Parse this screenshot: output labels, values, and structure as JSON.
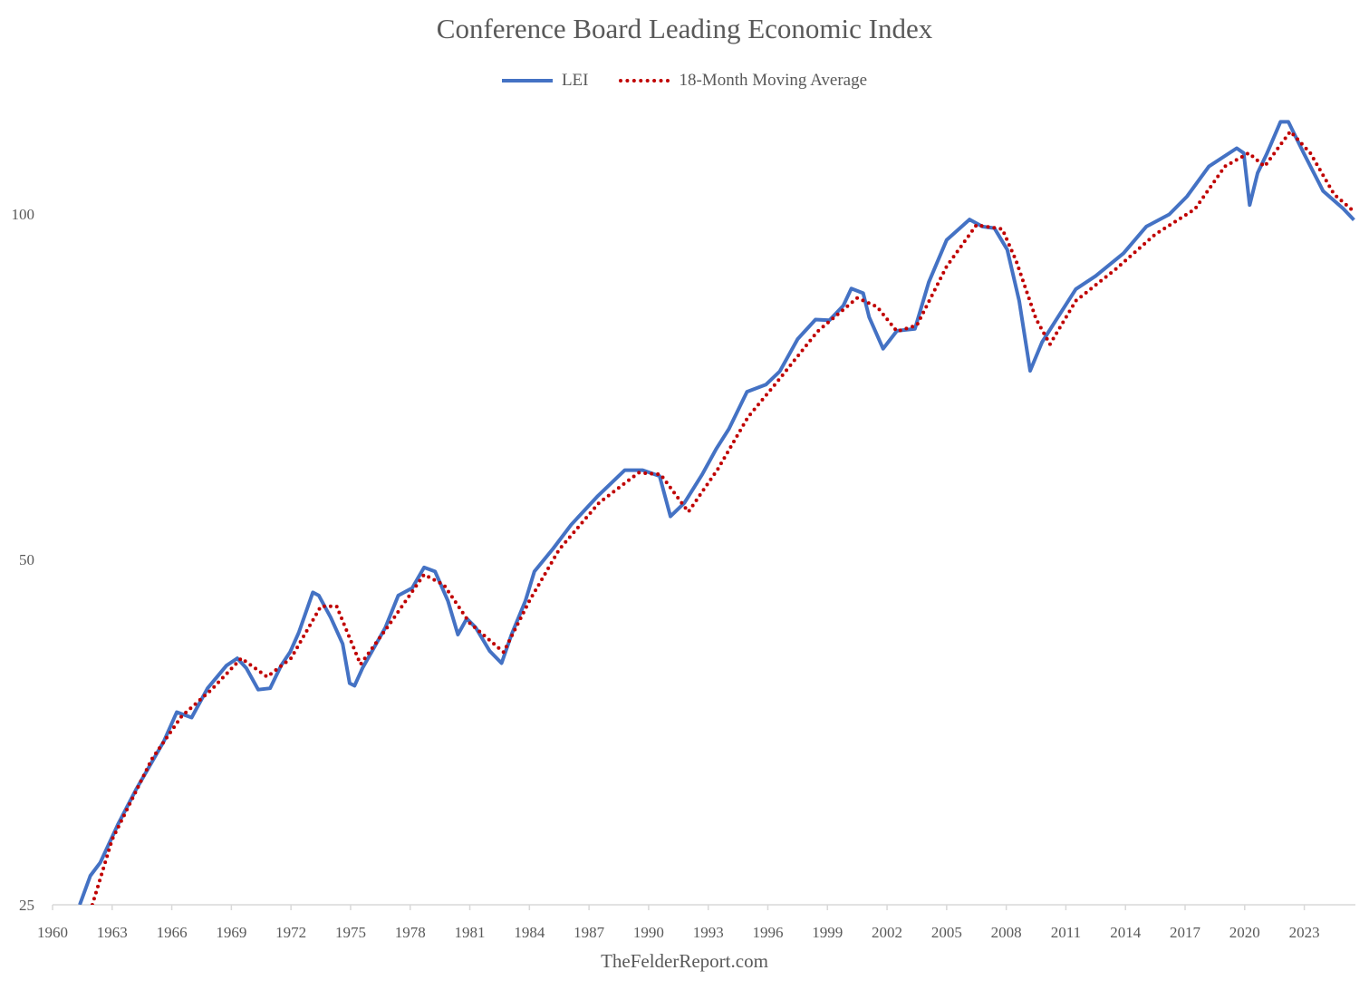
{
  "chart_data": {
    "type": "line",
    "title": "Conference Board Leading Economic Index",
    "xlabel": "",
    "ylabel": "",
    "yscale": "log2",
    "ylim": [
      25,
      125
    ],
    "xlim": [
      1960,
      2025.6
    ],
    "yticks": [
      25,
      50,
      100
    ],
    "xticks": [
      1960,
      1963,
      1966,
      1969,
      1972,
      1975,
      1978,
      1981,
      1984,
      1987,
      1990,
      1993,
      1996,
      1999,
      2002,
      2005,
      2008,
      2011,
      2014,
      2017,
      2020,
      2023
    ],
    "grid": false,
    "legend_position": "top-center",
    "source": "TheFelderReport.com",
    "series": [
      {
        "name": "LEI",
        "color": "#4472c4",
        "style": "solid",
        "points": [
          [
            1961.37,
            25
          ],
          [
            1961.9,
            26.5
          ],
          [
            1962.4,
            27.2
          ],
          [
            1963.3,
            29.4
          ],
          [
            1964.2,
            31.5
          ],
          [
            1965.6,
            34.7
          ],
          [
            1966.25,
            36.8
          ],
          [
            1967.0,
            36.4
          ],
          [
            1967.8,
            38.6
          ],
          [
            1968.75,
            40.4
          ],
          [
            1969.3,
            41.0
          ],
          [
            1969.75,
            40.2
          ],
          [
            1970.35,
            38.5
          ],
          [
            1970.95,
            38.6
          ],
          [
            1971.5,
            40.4
          ],
          [
            1971.95,
            41.5
          ],
          [
            1972.4,
            43.2
          ],
          [
            1973.1,
            46.8
          ],
          [
            1973.4,
            46.5
          ],
          [
            1974.0,
            44.5
          ],
          [
            1974.6,
            42.2
          ],
          [
            1974.95,
            39.0
          ],
          [
            1975.2,
            38.8
          ],
          [
            1975.6,
            40.2
          ],
          [
            1976.15,
            41.8
          ],
          [
            1976.75,
            43.6
          ],
          [
            1977.4,
            46.5
          ],
          [
            1978.1,
            47.2
          ],
          [
            1978.7,
            49.2
          ],
          [
            1979.25,
            48.8
          ],
          [
            1979.9,
            46.0
          ],
          [
            1980.4,
            43.0
          ],
          [
            1980.85,
            44.4
          ],
          [
            1981.3,
            43.6
          ],
          [
            1982.0,
            41.6
          ],
          [
            1982.6,
            40.6
          ],
          [
            1983.1,
            43.0
          ],
          [
            1983.8,
            46.0
          ],
          [
            1984.25,
            48.8
          ],
          [
            1985.2,
            51.1
          ],
          [
            1986.1,
            53.6
          ],
          [
            1987.45,
            56.8
          ],
          [
            1988.8,
            59.8
          ],
          [
            1989.7,
            59.8
          ],
          [
            1990.55,
            59.1
          ],
          [
            1991.1,
            54.5
          ],
          [
            1991.8,
            56.0
          ],
          [
            1992.7,
            59.3
          ],
          [
            1993.4,
            62.4
          ],
          [
            1994.05,
            65.0
          ],
          [
            1994.95,
            70.0
          ],
          [
            1995.9,
            71.0
          ],
          [
            1996.6,
            72.9
          ],
          [
            1997.5,
            77.8
          ],
          [
            1998.4,
            80.9
          ],
          [
            1999.1,
            80.8
          ],
          [
            1999.8,
            83.2
          ],
          [
            2000.2,
            86.1
          ],
          [
            2000.8,
            85.3
          ],
          [
            2001.1,
            81.3
          ],
          [
            2001.8,
            76.3
          ],
          [
            2002.5,
            79.1
          ],
          [
            2003.4,
            79.4
          ],
          [
            2004.1,
            87.2
          ],
          [
            2005.0,
            94.9
          ],
          [
            2006.15,
            98.9
          ],
          [
            2006.8,
            97.5
          ],
          [
            2007.4,
            97.2
          ],
          [
            2008.05,
            93.1
          ],
          [
            2008.65,
            84.0
          ],
          [
            2009.2,
            73.0
          ],
          [
            2009.8,
            77.3
          ],
          [
            2010.5,
            80.8
          ],
          [
            2011.5,
            86.0
          ],
          [
            2012.5,
            88.3
          ],
          [
            2013.9,
            92.4
          ],
          [
            2015.05,
            97.5
          ],
          [
            2016.2,
            99.9
          ],
          [
            2017.1,
            103.6
          ],
          [
            2018.2,
            110.0
          ],
          [
            2019.6,
            114.1
          ],
          [
            2019.95,
            113.0
          ],
          [
            2020.25,
            101.8
          ],
          [
            2020.65,
            108.6
          ],
          [
            2021.1,
            112.7
          ],
          [
            2021.8,
            120.3
          ],
          [
            2022.2,
            120.3
          ],
          [
            2023.0,
            112.7
          ],
          [
            2023.95,
            104.7
          ],
          [
            2024.95,
            101.1
          ],
          [
            2025.5,
            98.8
          ]
        ]
      },
      {
        "name": "18-Month Moving Average",
        "color": "#c00000",
        "style": "dotted",
        "points": [
          [
            1962.0,
            25
          ],
          [
            1963,
            28.5
          ],
          [
            1965,
            33.5
          ],
          [
            1966.5,
            36.5
          ],
          [
            1968,
            38.5
          ],
          [
            1969.5,
            41
          ],
          [
            1970.8,
            39.5
          ],
          [
            1972,
            41
          ],
          [
            1973.5,
            45.5
          ],
          [
            1974.3,
            45.5
          ],
          [
            1975.5,
            40.5
          ],
          [
            1977,
            44
          ],
          [
            1978.7,
            48.5
          ],
          [
            1979.7,
            47.5
          ],
          [
            1981,
            44
          ],
          [
            1982.7,
            41.5
          ],
          [
            1984,
            46
          ],
          [
            1985.5,
            51
          ],
          [
            1987.5,
            56
          ],
          [
            1989.5,
            59.5
          ],
          [
            1990.6,
            59.3
          ],
          [
            1992,
            55
          ],
          [
            1993.5,
            60
          ],
          [
            1995,
            66.5
          ],
          [
            1996.5,
            71.5
          ],
          [
            1998.5,
            79
          ],
          [
            2000.5,
            84.5
          ],
          [
            2001.5,
            83
          ],
          [
            2002.5,
            79
          ],
          [
            2003.5,
            80
          ],
          [
            2005,
            90
          ],
          [
            2006.5,
            97.8
          ],
          [
            2007.8,
            97
          ],
          [
            2008.5,
            91
          ],
          [
            2009.5,
            81
          ],
          [
            2010.2,
            77
          ],
          [
            2011.5,
            84
          ],
          [
            2013.5,
            89.5
          ],
          [
            2015.5,
            96
          ],
          [
            2017.5,
            101
          ],
          [
            2019,
            110
          ],
          [
            2020.2,
            113
          ],
          [
            2021,
            110
          ],
          [
            2022.3,
            118
          ],
          [
            2023.3,
            113
          ],
          [
            2024.5,
            104
          ],
          [
            2025.5,
            100.5
          ]
        ]
      }
    ]
  }
}
